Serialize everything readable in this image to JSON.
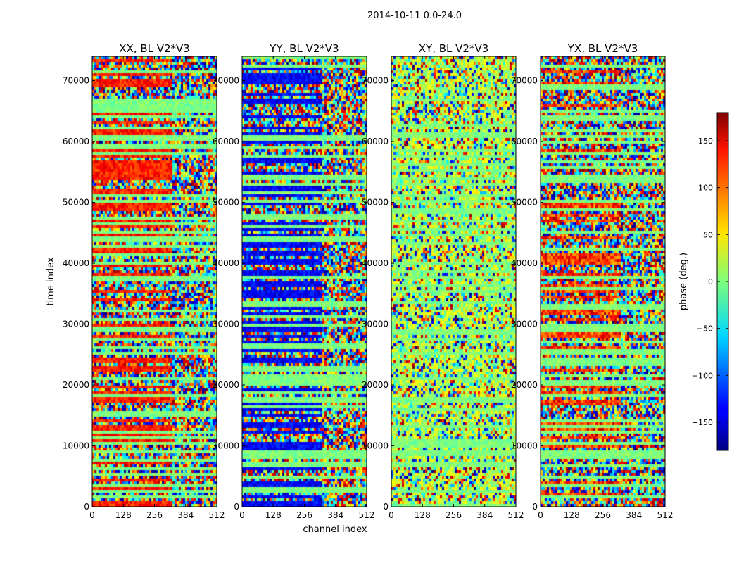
{
  "chart_data": {
    "type": "heatmap",
    "suptitle": "2014-10-11 0.0-24.0",
    "panels": [
      {
        "title": "XX, BL V2*V3",
        "dominant": "red-orange"
      },
      {
        "title": "YY, BL V2*V3",
        "dominant": "blue"
      },
      {
        "title": "XY, BL V2*V3",
        "dominant": "green-noise"
      },
      {
        "title": "YX, BL V2*V3",
        "dominant": "mixed"
      }
    ],
    "xlabel": "channel index",
    "ylabel": "time index",
    "xlim": [
      0,
      512
    ],
    "ylim": [
      0,
      74000
    ],
    "xticks": [
      0,
      128,
      256,
      384,
      512
    ],
    "yticks": [
      0,
      10000,
      20000,
      30000,
      40000,
      50000,
      60000,
      70000
    ],
    "colorbar": {
      "label": "phase (deg.)",
      "min": -180,
      "max": 180,
      "ticks": [
        150,
        100,
        50,
        0,
        -50,
        -100,
        -150
      ],
      "tick_labels": [
        "150",
        "100",
        "50",
        "0",
        "−50",
        "−100",
        "−150"
      ],
      "colormap": "jet"
    }
  }
}
